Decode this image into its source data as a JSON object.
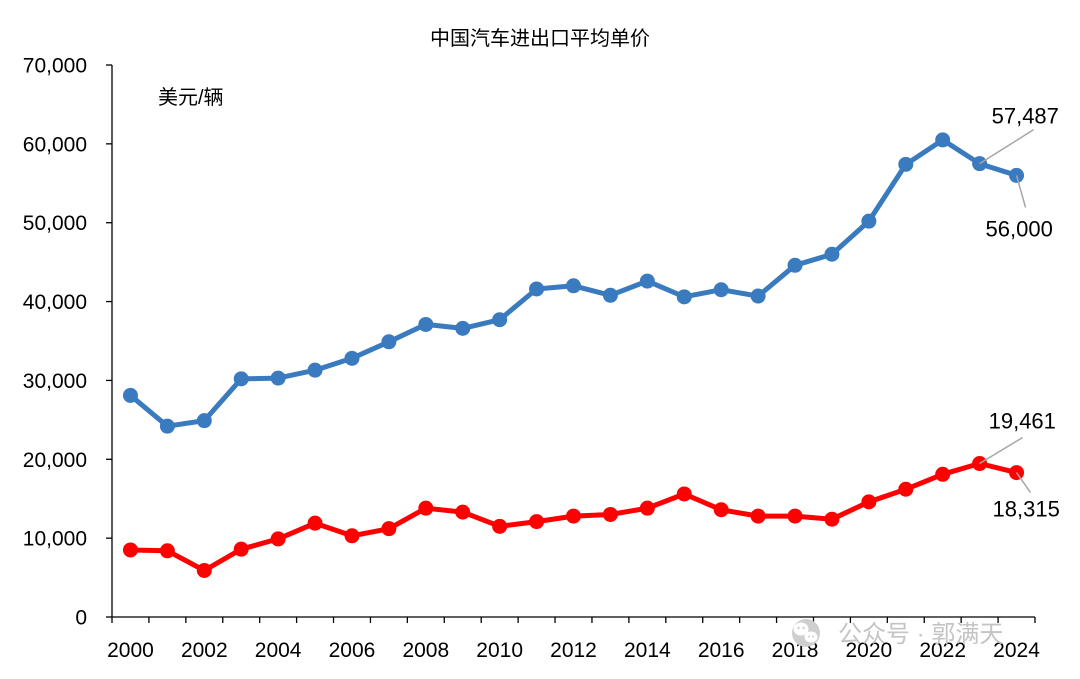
{
  "chart_data": {
    "type": "line",
    "title": "中国汽车进出口平均单价",
    "ylabel": "美元/辆",
    "x": [
      2000,
      2001,
      2002,
      2003,
      2004,
      2005,
      2006,
      2007,
      2008,
      2009,
      2010,
      2011,
      2012,
      2013,
      2014,
      2015,
      2016,
      2017,
      2018,
      2019,
      2020,
      2021,
      2022,
      2023,
      2024
    ],
    "x_tick_labels": [
      "2000",
      "2002",
      "2004",
      "2006",
      "2008",
      "2010",
      "2012",
      "2014",
      "2016",
      "2018",
      "2020",
      "2022",
      "2024"
    ],
    "ylim": [
      0,
      70000
    ],
    "y_ticks": [
      0,
      10000,
      20000,
      30000,
      40000,
      50000,
      60000,
      70000
    ],
    "y_tick_labels": [
      "0",
      "10,000",
      "20,000",
      "30,000",
      "40,000",
      "50,000",
      "60,000",
      "70,000"
    ],
    "grid": false,
    "series": [
      {
        "color": "#3A7ABF",
        "values": [
          28100,
          24200,
          24900,
          30200,
          30300,
          31300,
          32800,
          34900,
          37100,
          36600,
          37700,
          41600,
          42000,
          40800,
          42600,
          40600,
          41500,
          40700,
          44600,
          46000,
          50200,
          57400,
          60500,
          57487,
          56000
        ],
        "data_labels": [
          {
            "x": 2023,
            "text": "57,487"
          },
          {
            "x": 2024,
            "text": "56,000"
          }
        ]
      },
      {
        "color": "#FF0000",
        "values": [
          8500,
          8400,
          5900,
          8600,
          9900,
          11900,
          10300,
          11200,
          13800,
          13300,
          11500,
          12100,
          12800,
          13000,
          13800,
          15600,
          13600,
          12800,
          12800,
          12400,
          14600,
          16200,
          18100,
          19461,
          18315
        ],
        "data_labels": [
          {
            "x": 2023,
            "text": "19,461"
          },
          {
            "x": 2024,
            "text": "18,315"
          }
        ]
      }
    ]
  },
  "watermark": {
    "text": "公众号 · 郭满天",
    "icon": "wechat-icon"
  }
}
